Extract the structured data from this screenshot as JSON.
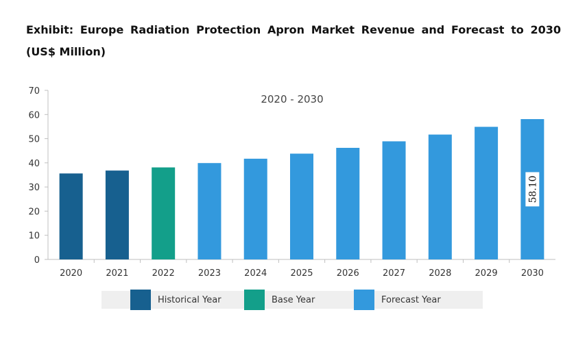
{
  "title": "Exhibit: Europe Radiation Protection Apron Market Revenue and Forecast to 2030 (US$ Million)",
  "chart_data": {
    "type": "bar",
    "subtitle": "2020 - 2030",
    "categories": [
      "2020",
      "2021",
      "2022",
      "2023",
      "2024",
      "2025",
      "2026",
      "2027",
      "2028",
      "2029",
      "2030"
    ],
    "values": [
      35.6,
      36.8,
      38.1,
      39.9,
      41.7,
      43.8,
      46.2,
      48.9,
      51.7,
      54.9,
      58.1
    ],
    "bar_types": [
      "historical",
      "historical",
      "base",
      "forecast",
      "forecast",
      "forecast",
      "forecast",
      "forecast",
      "forecast",
      "forecast",
      "forecast"
    ],
    "ylim": [
      0,
      70
    ],
    "yticks": [
      "0",
      "10",
      "20",
      "30",
      "40",
      "50",
      "60",
      "70"
    ],
    "xlabel": "",
    "ylabel": "",
    "grid": false,
    "data_label": {
      "category": "2030",
      "text": "58.10"
    },
    "colors": {
      "historical": "#17608f",
      "base": "#139f8a",
      "forecast": "#3399dd",
      "axis": "#bfbfbf"
    },
    "legend": {
      "position": "bottom",
      "items": [
        {
          "key": "historical",
          "label": "Historical Year"
        },
        {
          "key": "base",
          "label": "Base Year"
        },
        {
          "key": "forecast",
          "label": "Forecast Year"
        }
      ]
    }
  }
}
